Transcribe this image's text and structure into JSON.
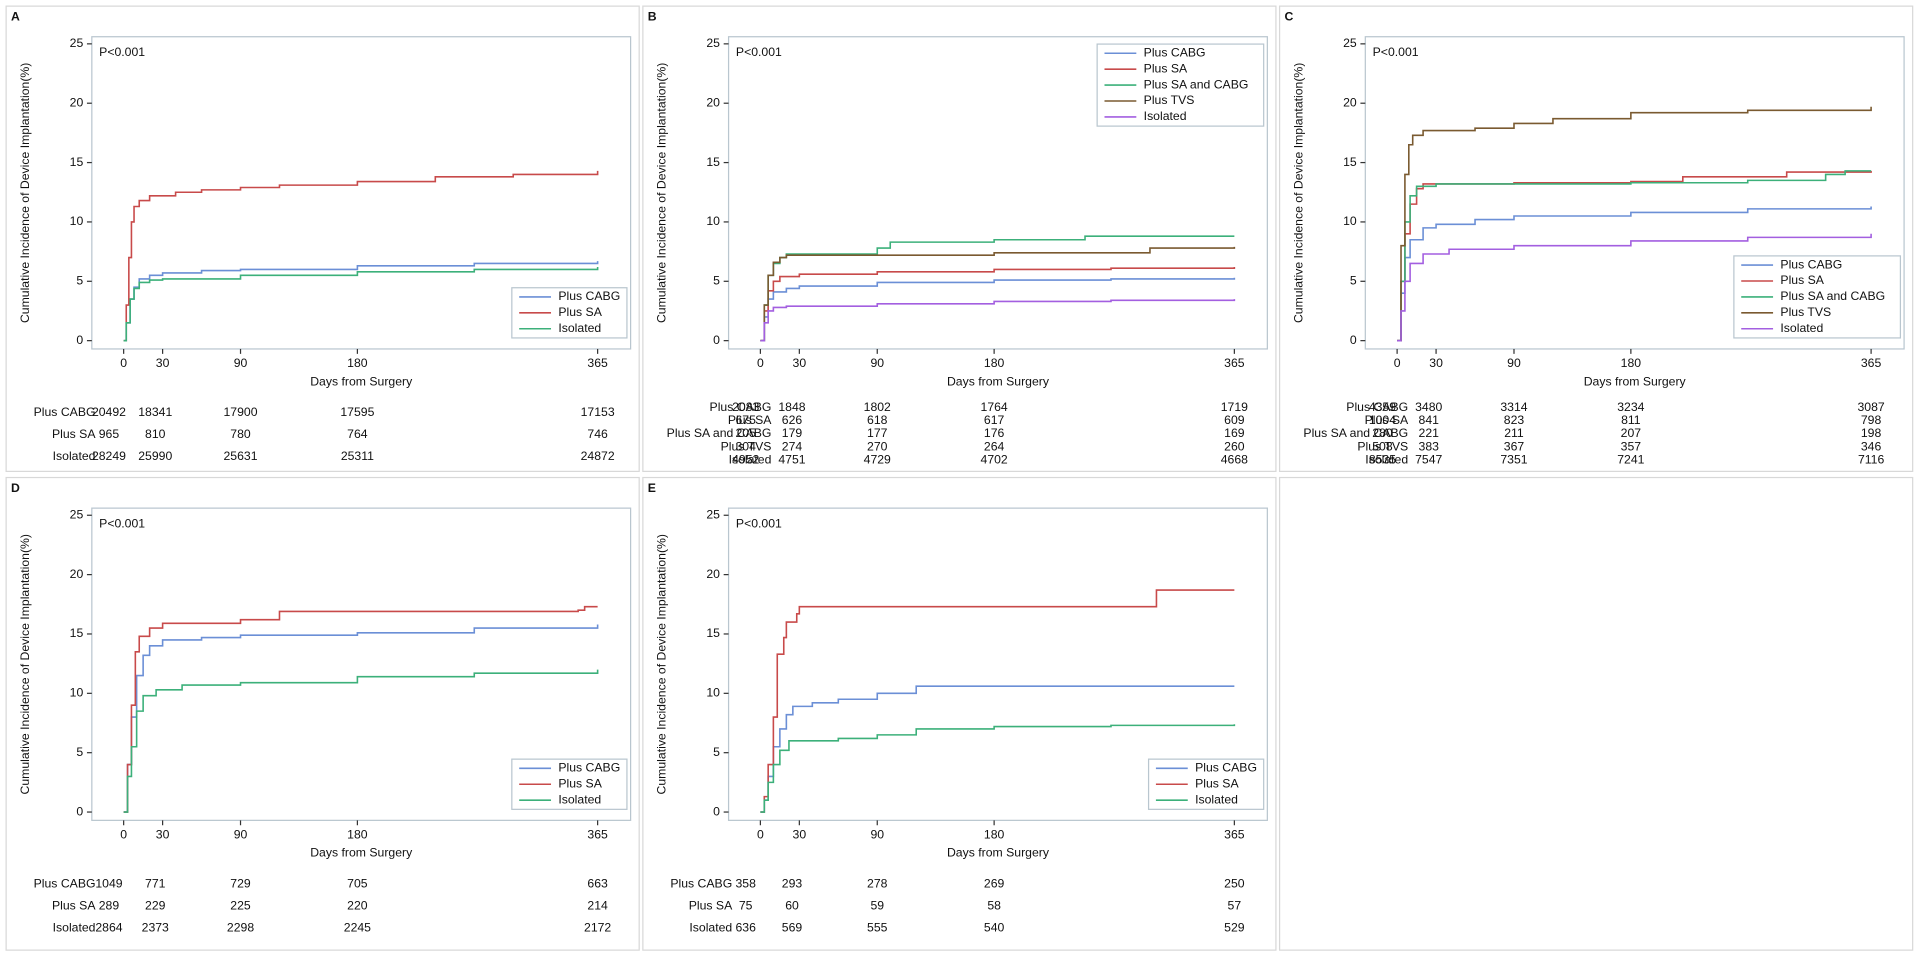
{
  "chart_data": [
    {
      "type": "step",
      "panel": "A",
      "annotation": "P<0.001",
      "y_label": "Cumulative Incidence of Device Implantation(%)",
      "x_label": "Days from Surgery",
      "xlim": [
        -24.5,
        390.4
      ],
      "xticks": [
        0,
        30,
        90,
        180,
        365
      ],
      "ylim": [
        -0.7,
        25.6
      ],
      "yticks": [
        0,
        5,
        10,
        15,
        20,
        25
      ],
      "legend": "lower right",
      "series": [
        {
          "name": "Plus CABG",
          "color": "#6b8fd6",
          "x": [
            0,
            2,
            5,
            8,
            12,
            20,
            30,
            60,
            90,
            180,
            270,
            365
          ],
          "values": [
            0,
            1.5,
            3.5,
            4.5,
            5.2,
            5.5,
            5.7,
            5.9,
            6.0,
            6.3,
            6.5,
            6.7
          ]
        },
        {
          "name": "Plus SA",
          "color": "#c84a4a",
          "x": [
            0,
            2,
            4,
            6,
            8,
            12,
            20,
            40,
            60,
            90,
            120,
            180,
            240,
            300,
            365
          ],
          "values": [
            0,
            3,
            7,
            10,
            11.3,
            11.8,
            12.2,
            12.5,
            12.7,
            12.9,
            13.1,
            13.4,
            13.8,
            14.0,
            14.3
          ]
        },
        {
          "name": "Isolated",
          "color": "#3cb07a",
          "x": [
            0,
            2,
            5,
            8,
            12,
            20,
            30,
            90,
            180,
            270,
            365
          ],
          "values": [
            0,
            1.5,
            3.5,
            4.4,
            4.9,
            5.1,
            5.2,
            5.5,
            5.8,
            6.0,
            6.2
          ]
        }
      ],
      "risk_table": [
        {
          "label": "Plus CABG",
          "values": [
            20492,
            18341,
            17900,
            17595,
            17153
          ]
        },
        {
          "label": "Plus SA",
          "values": [
            965,
            810,
            780,
            764,
            746
          ]
        },
        {
          "label": "Isolated",
          "values": [
            28249,
            25990,
            25631,
            25311,
            24872
          ]
        }
      ]
    },
    {
      "type": "step",
      "panel": "B",
      "annotation": "P<0.001",
      "y_label": "Cumulative Incidence of Device Implantation(%)",
      "x_label": "Days from Surgery",
      "xlim": [
        -24.5,
        390.4
      ],
      "xticks": [
        0,
        30,
        90,
        180,
        365
      ],
      "ylim": [
        -0.7,
        25.6
      ],
      "yticks": [
        0,
        5,
        10,
        15,
        20,
        25
      ],
      "legend": "upper right",
      "series": [
        {
          "name": "Plus CABG",
          "color": "#6b8fd6",
          "x": [
            0,
            3,
            6,
            10,
            20,
            30,
            90,
            180,
            270,
            365
          ],
          "values": [
            0,
            2,
            3.5,
            4.1,
            4.4,
            4.6,
            4.9,
            5.1,
            5.2,
            5.3
          ]
        },
        {
          "name": "Plus SA",
          "color": "#c84a4a",
          "x": [
            0,
            3,
            6,
            10,
            15,
            30,
            90,
            180,
            270,
            365
          ],
          "values": [
            0,
            2.5,
            4.2,
            5.0,
            5.4,
            5.6,
            5.8,
            6.0,
            6.1,
            6.2
          ]
        },
        {
          "name": "Plus SA and CABG",
          "color": "#3cb07a",
          "x": [
            0,
            3,
            6,
            10,
            15,
            20,
            60,
            90,
            100,
            180,
            250,
            365
          ],
          "values": [
            0,
            3,
            5.5,
            6.5,
            7.0,
            7.3,
            7.3,
            7.8,
            8.3,
            8.5,
            8.8,
            8.8
          ]
        },
        {
          "name": "Plus TVS",
          "color": "#7a5a30",
          "x": [
            0,
            3,
            6,
            10,
            15,
            20,
            150,
            180,
            300,
            365
          ],
          "values": [
            0,
            3,
            5.5,
            6.6,
            7.0,
            7.2,
            7.2,
            7.4,
            7.8,
            7.9
          ]
        },
        {
          "name": "Isolated",
          "color": "#a35fe0",
          "x": [
            0,
            3,
            6,
            10,
            20,
            90,
            180,
            270,
            365
          ],
          "values": [
            0,
            1.5,
            2.5,
            2.8,
            2.9,
            3.1,
            3.3,
            3.4,
            3.5
          ]
        }
      ],
      "risk_table": [
        {
          "label": "Plus CABG",
          "values": [
            2083,
            1848,
            1802,
            1764,
            1719
          ]
        },
        {
          "label": "Plus SA",
          "values": [
            675,
            626,
            618,
            617,
            609
          ]
        },
        {
          "label": "Plus SA and CABG",
          "values": [
            205,
            179,
            177,
            176,
            169
          ]
        },
        {
          "label": "Plus TVS",
          "values": [
            304,
            274,
            270,
            264,
            260
          ]
        },
        {
          "label": "Isolated",
          "values": [
            4952,
            4751,
            4729,
            4702,
            4668
          ]
        }
      ]
    },
    {
      "type": "step",
      "panel": "C",
      "annotation": "P<0.001",
      "y_label": "Cumulative Incidence of Device Implantation(%)",
      "x_label": "Days from Surgery",
      "xlim": [
        -24.5,
        390.4
      ],
      "xticks": [
        0,
        30,
        90,
        180,
        365
      ],
      "ylim": [
        -0.7,
        25.6
      ],
      "yticks": [
        0,
        5,
        10,
        15,
        20,
        25
      ],
      "legend": "lower right",
      "series": [
        {
          "name": "Plus CABG",
          "color": "#6b8fd6",
          "x": [
            0,
            3,
            6,
            10,
            20,
            30,
            60,
            90,
            180,
            270,
            365
          ],
          "values": [
            0,
            4,
            7,
            8.5,
            9.5,
            9.8,
            10.2,
            10.5,
            10.8,
            11.1,
            11.3
          ]
        },
        {
          "name": "Plus SA",
          "color": "#c84a4a",
          "x": [
            0,
            3,
            6,
            10,
            15,
            20,
            90,
            180,
            220,
            300,
            365
          ],
          "values": [
            0,
            5,
            9,
            11.5,
            12.8,
            13.2,
            13.3,
            13.4,
            13.8,
            14.2,
            14.3
          ]
        },
        {
          "name": "Plus SA and CABG",
          "color": "#3cb07a",
          "x": [
            0,
            3,
            6,
            10,
            15,
            30,
            180,
            270,
            330,
            345,
            365
          ],
          "values": [
            0,
            5,
            10,
            12.2,
            13.0,
            13.2,
            13.3,
            13.5,
            14.0,
            14.3,
            14.3
          ]
        },
        {
          "name": "Plus TVS",
          "color": "#7a5a30",
          "x": [
            0,
            3,
            6,
            9,
            12,
            20,
            60,
            90,
            120,
            180,
            270,
            365
          ],
          "values": [
            0,
            8,
            14,
            16.5,
            17.3,
            17.7,
            17.9,
            18.3,
            18.7,
            19.2,
            19.4,
            19.7
          ]
        },
        {
          "name": "Isolated",
          "color": "#a35fe0",
          "x": [
            0,
            3,
            6,
            10,
            20,
            40,
            90,
            180,
            270,
            365
          ],
          "values": [
            0,
            2.5,
            5,
            6.5,
            7.3,
            7.7,
            8.0,
            8.4,
            8.7,
            9.0
          ]
        }
      ],
      "risk_table": [
        {
          "label": "Plus CABG",
          "values": [
            4359,
            3480,
            3314,
            3234,
            3087
          ]
        },
        {
          "label": "Plus SA",
          "values": [
            1004,
            841,
            823,
            811,
            798
          ]
        },
        {
          "label": "Plus SA and CABG",
          "values": [
            280,
            221,
            211,
            207,
            198
          ]
        },
        {
          "label": "Plus TVS",
          "values": [
            508,
            383,
            367,
            357,
            346
          ]
        },
        {
          "label": "Isolated",
          "values": [
            8535,
            7547,
            7351,
            7241,
            7116
          ]
        }
      ]
    },
    {
      "type": "step",
      "panel": "D",
      "annotation": "P<0.001",
      "y_label": "Cumulative Incidence of Device Implantation(%)",
      "x_label": "Days from Surgery",
      "xlim": [
        -24.5,
        390.4
      ],
      "xticks": [
        0,
        30,
        90,
        180,
        365
      ],
      "ylim": [
        -0.7,
        25.6
      ],
      "yticks": [
        0,
        5,
        10,
        15,
        20,
        25
      ],
      "legend": "lower right",
      "series": [
        {
          "name": "Plus CABG",
          "color": "#6b8fd6",
          "x": [
            0,
            3,
            6,
            10,
            15,
            20,
            30,
            60,
            90,
            180,
            270,
            365
          ],
          "values": [
            0,
            4,
            8,
            11.5,
            13.2,
            14.0,
            14.5,
            14.7,
            14.9,
            15.1,
            15.5,
            15.8
          ]
        },
        {
          "name": "Plus SA",
          "color": "#c84a4a",
          "x": [
            0,
            3,
            6,
            9,
            12,
            20,
            30,
            90,
            120,
            350,
            355,
            365
          ],
          "values": [
            0,
            4,
            9,
            13.5,
            14.8,
            15.5,
            15.9,
            16.2,
            16.9,
            17.0,
            17.3,
            17.3
          ]
        },
        {
          "name": "Isolated",
          "color": "#3cb07a",
          "x": [
            0,
            3,
            6,
            10,
            15,
            25,
            45,
            90,
            180,
            270,
            365
          ],
          "values": [
            0,
            3,
            5.5,
            8.5,
            9.8,
            10.3,
            10.7,
            10.9,
            11.4,
            11.7,
            12.0
          ]
        }
      ],
      "risk_table": [
        {
          "label": "Plus CABG",
          "values": [
            1049,
            771,
            729,
            705,
            663
          ]
        },
        {
          "label": "Plus SA",
          "values": [
            289,
            229,
            225,
            220,
            214
          ]
        },
        {
          "label": "Isolated",
          "values": [
            2864,
            2373,
            2298,
            2245,
            2172
          ]
        }
      ]
    },
    {
      "type": "step",
      "panel": "E",
      "annotation": "P<0.001",
      "y_label": "Cumulative Incidence of Device Implantation(%)",
      "x_label": "Days from Surgery",
      "xlim": [
        -24.5,
        390.4
      ],
      "xticks": [
        0,
        30,
        90,
        180,
        365
      ],
      "ylim": [
        -0.7,
        25.6
      ],
      "yticks": [
        0,
        5,
        10,
        15,
        20,
        25
      ],
      "legend": "lower right",
      "series": [
        {
          "name": "Plus CABG",
          "color": "#6b8fd6",
          "x": [
            0,
            3,
            6,
            10,
            15,
            20,
            25,
            40,
            60,
            90,
            120,
            365
          ],
          "values": [
            0,
            1,
            3,
            5.5,
            7,
            8.2,
            8.9,
            9.2,
            9.5,
            10.0,
            10.6,
            10.6
          ]
        },
        {
          "name": "Plus SA",
          "color": "#c84a4a",
          "x": [
            0,
            3,
            6,
            10,
            13,
            18,
            20,
            28,
            30,
            300,
            305,
            365
          ],
          "values": [
            0,
            1.3,
            4,
            8,
            13.3,
            14.7,
            16,
            16.7,
            17.3,
            17.3,
            18.7,
            18.7
          ]
        },
        {
          "name": "Isolated",
          "color": "#3cb07a",
          "x": [
            0,
            3,
            6,
            10,
            15,
            22,
            60,
            90,
            120,
            180,
            270,
            365
          ],
          "values": [
            0,
            1,
            2.5,
            4,
            5.2,
            6.0,
            6.2,
            6.5,
            7.0,
            7.2,
            7.3,
            7.4
          ]
        }
      ],
      "risk_table": [
        {
          "label": "Plus CABG",
          "values": [
            358,
            293,
            278,
            269,
            250
          ]
        },
        {
          "label": "Plus SA",
          "values": [
            75,
            60,
            59,
            58,
            57
          ]
        },
        {
          "label": "Isolated",
          "values": [
            636,
            569,
            555,
            540,
            529
          ]
        }
      ]
    }
  ]
}
